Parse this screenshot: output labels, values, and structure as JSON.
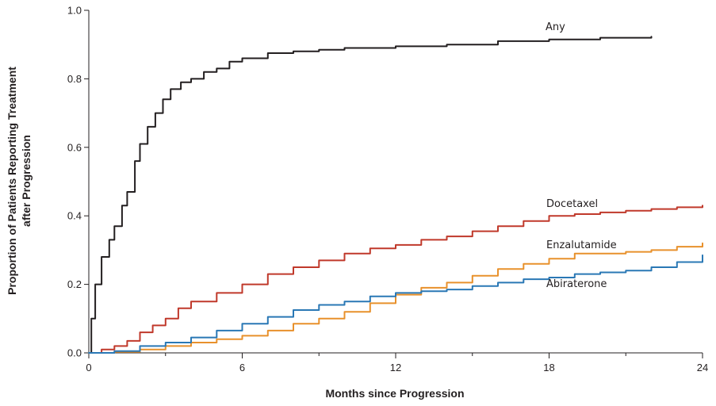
{
  "chart_data": {
    "type": "line",
    "title": "",
    "xlabel": "Months since Progression",
    "ylabel_lines": [
      "Proportion of Patients Reporting Treatment",
      "after Progression"
    ],
    "xlim": [
      0,
      24
    ],
    "ylim": [
      0,
      1.0
    ],
    "x_major_ticks": [
      0,
      6,
      12,
      18,
      24
    ],
    "x_major_tick_labels": [
      "0",
      "6",
      "12",
      "18",
      "24"
    ],
    "x_minor_ticks": [
      3,
      9,
      15,
      21
    ],
    "y_ticks": [
      0,
      0.2,
      0.4,
      0.6,
      0.8,
      1.0
    ],
    "y_tick_labels": [
      "0.0",
      "0.2",
      "0.4",
      "0.6",
      "0.8",
      "1.0"
    ],
    "grid": false,
    "series": [
      {
        "name": "Any",
        "color": "#231f20",
        "points": [
          [
            0,
            0
          ],
          [
            0.1,
            0.1
          ],
          [
            0.25,
            0.2
          ],
          [
            0.5,
            0.28
          ],
          [
            0.8,
            0.33
          ],
          [
            1.0,
            0.37
          ],
          [
            1.3,
            0.43
          ],
          [
            1.5,
            0.47
          ],
          [
            1.8,
            0.56
          ],
          [
            2.0,
            0.61
          ],
          [
            2.3,
            0.66
          ],
          [
            2.6,
            0.7
          ],
          [
            2.9,
            0.74
          ],
          [
            3.2,
            0.77
          ],
          [
            3.6,
            0.79
          ],
          [
            4.0,
            0.8
          ],
          [
            4.5,
            0.82
          ],
          [
            5.0,
            0.83
          ],
          [
            5.5,
            0.85
          ],
          [
            6.0,
            0.86
          ],
          [
            7.0,
            0.875
          ],
          [
            8.0,
            0.88
          ],
          [
            9.0,
            0.885
          ],
          [
            10.0,
            0.89
          ],
          [
            12.0,
            0.895
          ],
          [
            14.0,
            0.9
          ],
          [
            16.0,
            0.91
          ],
          [
            18.0,
            0.915
          ],
          [
            20.0,
            0.92
          ],
          [
            22.0,
            0.923
          ]
        ]
      },
      {
        "name": "Docetaxel",
        "color": "#c0392b",
        "points": [
          [
            0,
            0
          ],
          [
            0.5,
            0.01
          ],
          [
            1.0,
            0.02
          ],
          [
            1.5,
            0.035
          ],
          [
            2.0,
            0.06
          ],
          [
            2.5,
            0.08
          ],
          [
            3.0,
            0.1
          ],
          [
            3.5,
            0.13
          ],
          [
            4.0,
            0.15
          ],
          [
            5.0,
            0.175
          ],
          [
            6.0,
            0.2
          ],
          [
            7.0,
            0.23
          ],
          [
            8.0,
            0.25
          ],
          [
            9.0,
            0.27
          ],
          [
            10.0,
            0.29
          ],
          [
            11.0,
            0.305
          ],
          [
            12.0,
            0.315
          ],
          [
            13.0,
            0.33
          ],
          [
            14.0,
            0.34
          ],
          [
            15.0,
            0.355
          ],
          [
            16.0,
            0.37
          ],
          [
            17.0,
            0.385
          ],
          [
            18.0,
            0.4
          ],
          [
            19.0,
            0.405
          ],
          [
            20.0,
            0.41
          ],
          [
            21.0,
            0.415
          ],
          [
            22.0,
            0.42
          ],
          [
            23.0,
            0.425
          ],
          [
            24.0,
            0.43
          ]
        ]
      },
      {
        "name": "Enzalutamide",
        "color": "#e8912c",
        "points": [
          [
            0,
            0
          ],
          [
            1.0,
            0.003
          ],
          [
            2.0,
            0.01
          ],
          [
            3.0,
            0.02
          ],
          [
            4.0,
            0.03
          ],
          [
            5.0,
            0.04
          ],
          [
            6.0,
            0.05
          ],
          [
            7.0,
            0.065
          ],
          [
            8.0,
            0.085
          ],
          [
            9.0,
            0.1
          ],
          [
            10.0,
            0.12
          ],
          [
            11.0,
            0.145
          ],
          [
            12.0,
            0.17
          ],
          [
            13.0,
            0.19
          ],
          [
            14.0,
            0.205
          ],
          [
            15.0,
            0.225
          ],
          [
            16.0,
            0.245
          ],
          [
            17.0,
            0.26
          ],
          [
            18.0,
            0.275
          ],
          [
            19.0,
            0.29
          ],
          [
            20.0,
            0.29
          ],
          [
            21.0,
            0.295
          ],
          [
            22.0,
            0.3
          ],
          [
            23.0,
            0.31
          ],
          [
            24.0,
            0.32
          ]
        ]
      },
      {
        "name": "Abiraterone",
        "color": "#2a78b5",
        "points": [
          [
            0,
            0
          ],
          [
            1.0,
            0.005
          ],
          [
            2.0,
            0.02
          ],
          [
            3.0,
            0.03
          ],
          [
            4.0,
            0.045
          ],
          [
            5.0,
            0.065
          ],
          [
            6.0,
            0.085
          ],
          [
            7.0,
            0.105
          ],
          [
            8.0,
            0.125
          ],
          [
            9.0,
            0.14
          ],
          [
            10.0,
            0.15
          ],
          [
            11.0,
            0.165
          ],
          [
            12.0,
            0.175
          ],
          [
            13.0,
            0.18
          ],
          [
            14.0,
            0.185
          ],
          [
            15.0,
            0.195
          ],
          [
            16.0,
            0.205
          ],
          [
            17.0,
            0.215
          ],
          [
            18.0,
            0.22
          ],
          [
            19.0,
            0.23
          ],
          [
            20.0,
            0.235
          ],
          [
            21.0,
            0.24
          ],
          [
            22.0,
            0.25
          ],
          [
            23.0,
            0.265
          ],
          [
            24.0,
            0.285
          ]
        ]
      }
    ]
  }
}
